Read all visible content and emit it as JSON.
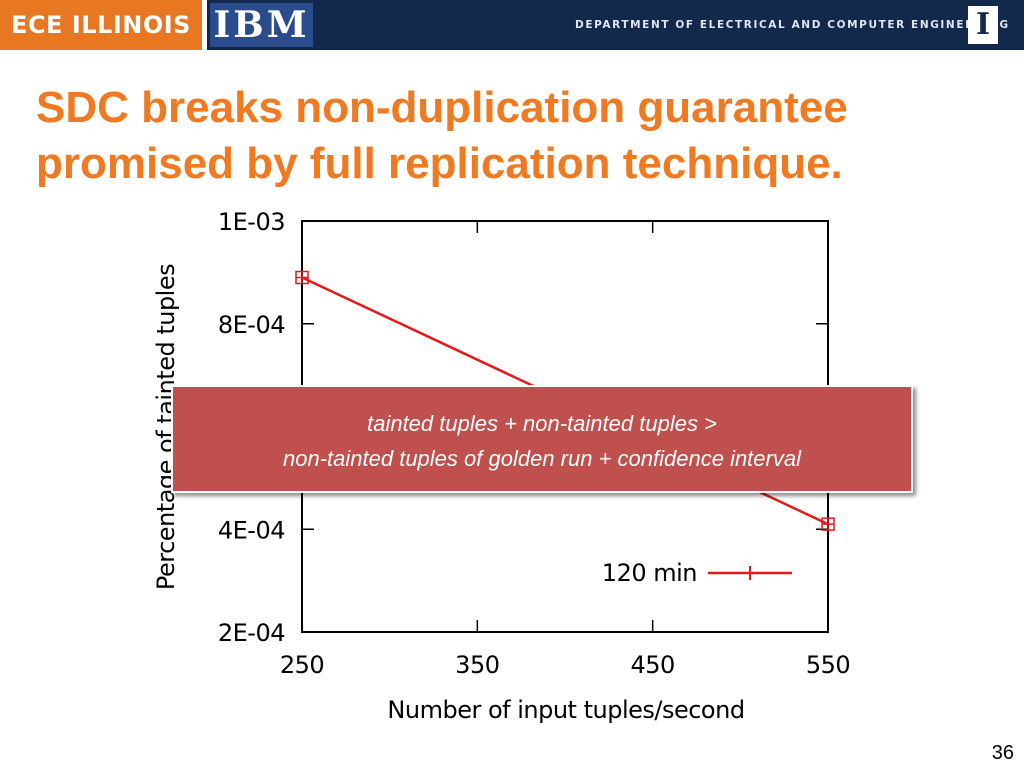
{
  "header": {
    "left_brand": "ECE ILLINOIS",
    "logo": "IBM",
    "department": "DEPARTMENT OF ELECTRICAL AND COMPUTER ENGINEERING",
    "block_i": "I"
  },
  "title": {
    "line1": "SDC breaks non-duplication guarantee",
    "line2": "promised by full replication technique."
  },
  "callout": {
    "line1": "tainted tuples + non-tainted tuples >",
    "line2": "non-tainted tuples of golden run + confidence interval"
  },
  "page_number": "36",
  "colors": {
    "accent_orange": "#f07a22",
    "header_navy": "#13294b",
    "series_red": "#e31a1c",
    "callout_red": "#c0504d"
  },
  "chart_data": {
    "type": "line",
    "xlabel": "Number of input tuples/second",
    "ylabel": "Percentage of tainted tuples",
    "xlim": [
      250,
      550
    ],
    "ylim": [
      0.0002,
      0.001
    ],
    "x_ticks": [
      250,
      350,
      450,
      550
    ],
    "x_tick_labels": [
      "250",
      "350",
      "450",
      "550"
    ],
    "y_ticks": [
      0.0002,
      0.0004,
      0.0006,
      0.0008,
      0.001
    ],
    "y_tick_labels": [
      "2E-04",
      "4E-04",
      "",
      "8E-04",
      "1E-03"
    ],
    "grid": false,
    "legend_position": "bottom-right",
    "series": [
      {
        "name": "120 min",
        "color": "#e31a1c",
        "points": [
          {
            "x": 250,
            "y": 0.00089
          },
          {
            "x": 550,
            "y": 0.00041
          }
        ]
      }
    ]
  }
}
